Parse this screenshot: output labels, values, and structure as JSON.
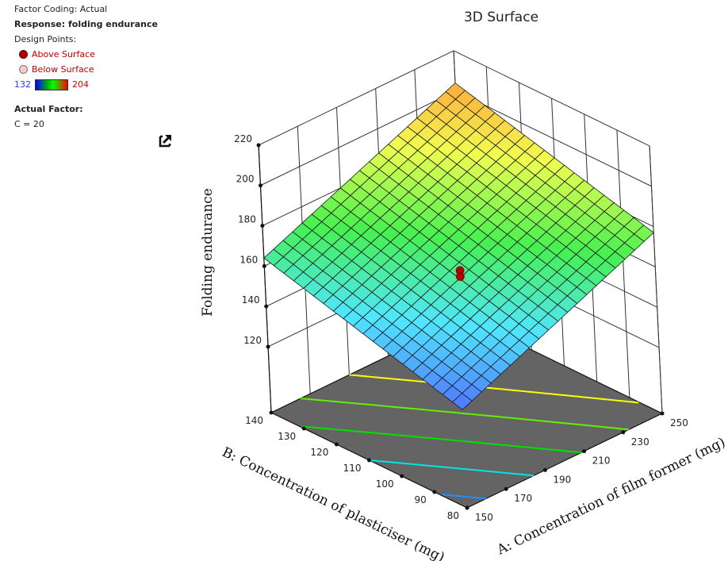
{
  "legend": {
    "factor_coding": "Factor Coding: Actual",
    "response": "Response: folding endurance",
    "design_points_label": "Design Points:",
    "above_surface": "Above Surface",
    "below_surface": "Below Surface",
    "colorbar_min": "132",
    "colorbar_max": "204",
    "actual_factor_label": "Actual Factor:",
    "actual_factor_value": "C = 20"
  },
  "icons": {
    "popout": "popout-arrow-icon"
  },
  "colors": {
    "above_point": "#b00000",
    "below_point": "#ffc8c8",
    "floor": "#646464",
    "colorbar_low": "#0000ff",
    "colorbar_high": "#ff0000"
  },
  "chart_data": {
    "type": "surface3d",
    "title": "3D Surface",
    "xlabel": "A: Concentration of film former (mg)",
    "ylabel": "B: Concentration of plasticiser (mg)",
    "zlabel": "Folding endurance",
    "x_ticks": [
      "150",
      "170",
      "190",
      "210",
      "230",
      "250"
    ],
    "y_ticks": [
      "80",
      "90",
      "100",
      "110",
      "120",
      "130",
      "140"
    ],
    "z_ticks": [
      "120",
      "140",
      "160",
      "180",
      "200",
      "220"
    ],
    "xlim": [
      150,
      250
    ],
    "ylim": [
      80,
      140
    ],
    "zlim": [
      120,
      220
    ],
    "surface_corners": [
      {
        "A": 150,
        "B": 80,
        "z": 136
      },
      {
        "A": 250,
        "B": 80,
        "z": 177
      },
      {
        "A": 150,
        "B": 140,
        "z": 164
      },
      {
        "A": 250,
        "B": 140,
        "z": 204
      }
    ],
    "grid_divisions": 20,
    "colorbar_range": [
      132,
      204
    ],
    "design_points": [
      {
        "A": 200,
        "B": 110,
        "z": 158,
        "position": "above"
      },
      {
        "A": 200,
        "B": 110,
        "z": 155,
        "position": "above"
      }
    ],
    "floor_contours": [
      {
        "level": 140,
        "color": "#1e90ff"
      },
      {
        "level": 150,
        "color": "#00e5e5"
      },
      {
        "level": 160,
        "color": "#00e000"
      },
      {
        "level": 170,
        "color": "#60f000"
      },
      {
        "level": 180,
        "color": "#ffff00"
      }
    ],
    "fixed_factor": "C = 20"
  }
}
